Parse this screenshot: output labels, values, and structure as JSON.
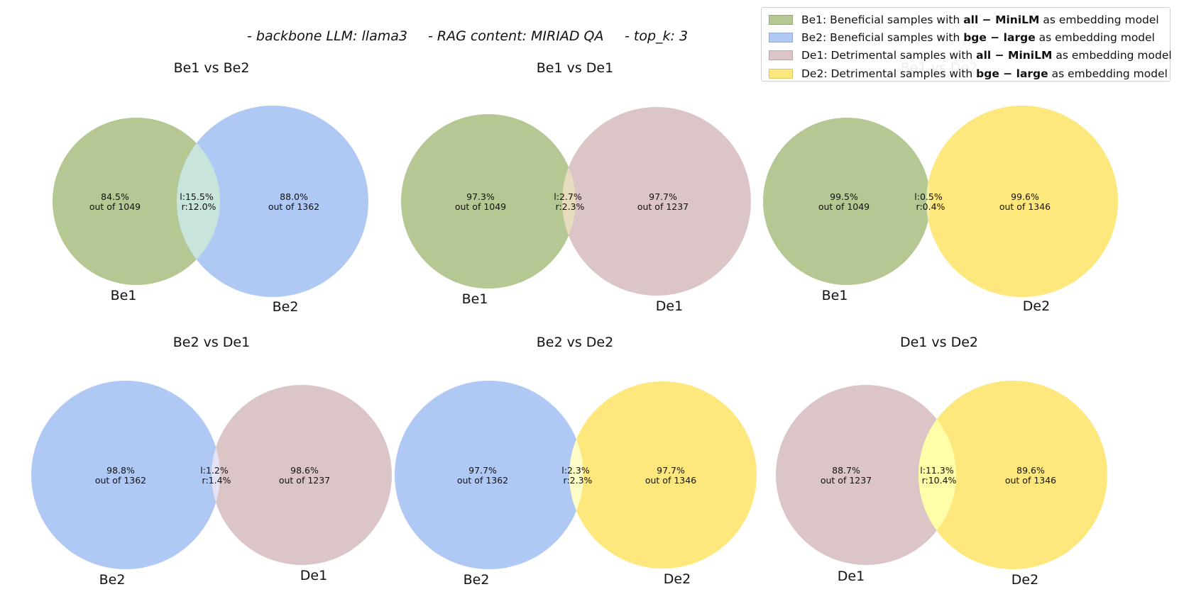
{
  "subtitle": {
    "backbone": "- backbone LLM: llama3",
    "rag": "- RAG content: MIRIAD QA",
    "topk": "- top_k: 3"
  },
  "colors": {
    "Be1": "#b5c792",
    "Be2": "#b0c8f4",
    "De1": "#dcc5c6",
    "De2": "#fee87d",
    "overlap_Be1_Be2": "#c9e4db",
    "overlap_Be1_De1": "#e6dbbd",
    "overlap_Be1_De2": "#f4f0a8",
    "overlap_Be2_De1": "#e4e2f4",
    "overlap_Be2_De2": "#fdfec8",
    "overlap_De1_De2": "#fefda8"
  },
  "legend": [
    {
      "set": "Be1",
      "prefix": "Be1: Beneficial samples with ",
      "model": "all − MiniLM",
      "suffix": " as embedding model"
    },
    {
      "set": "Be2",
      "prefix": "Be2: Beneficial samples with ",
      "model": "bge − large",
      "suffix": " as embedding model"
    },
    {
      "set": "De1",
      "prefix": "De1: Detrimental samples with ",
      "model": "all − MiniLM",
      "suffix": " as embedding model"
    },
    {
      "set": "De2",
      "prefix": "De2: Detrimental samples with ",
      "model": "bge − large",
      "suffix": " as embedding model"
    }
  ],
  "venns": [
    {
      "title": "Be1 vs Be2",
      "left": "Be1",
      "right": "Be2",
      "overlap_color": "overlap_Be1_Be2",
      "left_pct": "84.5%",
      "left_total": "out of 1049",
      "right_pct": "88.0%",
      "right_total": "out of 1362",
      "overlap_l": "l:15.5%",
      "overlap_r": "r:12.0%"
    },
    {
      "title": "Be1 vs De1",
      "left": "Be1",
      "right": "De1",
      "overlap_color": "overlap_Be1_De1",
      "left_pct": "97.3%",
      "left_total": "out of 1049",
      "right_pct": "97.7%",
      "right_total": "out of 1237",
      "overlap_l": "l:2.7%",
      "overlap_r": "r:2.3%"
    },
    {
      "title": "Be1 vs De2",
      "left": "Be1",
      "right": "De2",
      "overlap_color": "overlap_Be1_De2",
      "left_pct": "99.5%",
      "left_total": "out of 1049",
      "right_pct": "99.6%",
      "right_total": "out of 1346",
      "overlap_l": "l:0.5%",
      "overlap_r": "r:0.4%"
    },
    {
      "title": "Be2 vs De1",
      "left": "Be2",
      "right": "De1",
      "overlap_color": "overlap_Be2_De1",
      "left_pct": "98.8%",
      "left_total": "out of 1362",
      "right_pct": "98.6%",
      "right_total": "out of 1237",
      "overlap_l": "l:1.2%",
      "overlap_r": "r:1.4%"
    },
    {
      "title": "Be2 vs De2",
      "left": "Be2",
      "right": "De2",
      "overlap_color": "overlap_Be2_De2",
      "left_pct": "97.7%",
      "left_total": "out of 1362",
      "right_pct": "97.7%",
      "right_total": "out of 1346",
      "overlap_l": "l:2.3%",
      "overlap_r": "r:2.3%"
    },
    {
      "title": "De1 vs De2",
      "left": "De1",
      "right": "De2",
      "overlap_color": "overlap_De1_De2",
      "left_pct": "88.7%",
      "left_total": "out of 1237",
      "right_pct": "89.6%",
      "right_total": "out of 1346",
      "overlap_l": "l:11.3%",
      "overlap_r": "r:10.4%"
    }
  ]
}
